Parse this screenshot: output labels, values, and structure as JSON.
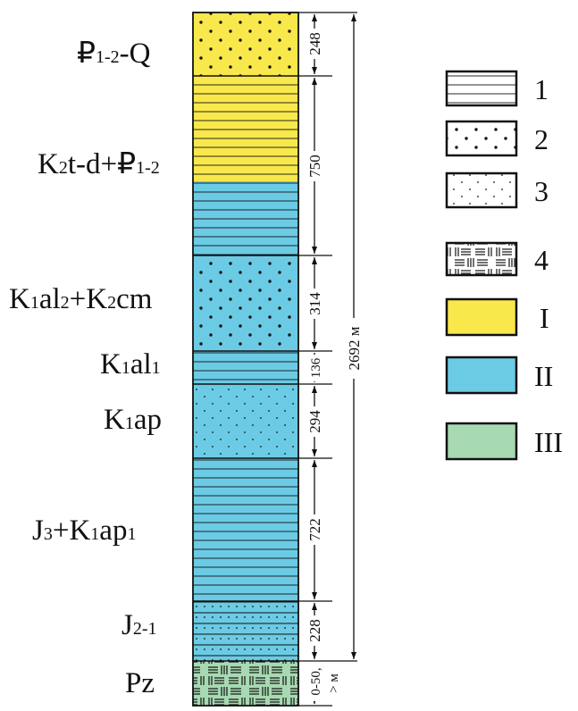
{
  "colors": {
    "zone_I": "#f8e84b",
    "zone_II": "#6ccbe4",
    "zone_III": "#a7d9b2",
    "stroke": "#111111"
  },
  "units": [
    {
      "age": [
        [
          "₽",
          ""
        ],
        [
          "1-2",
          "sub"
        ],
        [
          "-Q",
          ""
        ]
      ],
      "thickness": "248",
      "zone": "I",
      "pattern": "coarse-dots"
    },
    {
      "age": [
        [
          "K",
          ""
        ],
        [
          "2",
          "sub"
        ],
        [
          "t-d+₽",
          ""
        ],
        [
          "1-2",
          "sub"
        ]
      ],
      "thickness": "750",
      "zone": "I/II",
      "pattern": "lines"
    },
    {
      "age": [
        [
          "K",
          ""
        ],
        [
          "1",
          "sub"
        ],
        [
          "al",
          ""
        ],
        [
          "2",
          "sub"
        ],
        [
          "+K",
          ""
        ],
        [
          "2",
          "sub"
        ],
        [
          "cm",
          ""
        ]
      ],
      "thickness": "314",
      "zone": "II",
      "pattern": "coarse-dots"
    },
    {
      "age": [
        [
          "K",
          ""
        ],
        [
          "1",
          "sub"
        ],
        [
          "al",
          ""
        ],
        [
          "1",
          "sub"
        ]
      ],
      "thickness": "136",
      "zone": "II",
      "pattern": "lines"
    },
    {
      "age": [
        [
          "K",
          ""
        ],
        [
          "1",
          "sub"
        ],
        [
          "ap",
          ""
        ]
      ],
      "thickness": "294",
      "zone": "II",
      "pattern": "fine-dots"
    },
    {
      "age": [
        [
          "J",
          ""
        ],
        [
          "3",
          "sub"
        ],
        [
          "+K",
          ""
        ],
        [
          "1",
          "sub"
        ],
        [
          "ap",
          ""
        ],
        [
          "1",
          "sub"
        ]
      ],
      "thickness": "722",
      "zone": "II",
      "pattern": "lines"
    },
    {
      "age": [
        [
          "J",
          ""
        ],
        [
          "2-1",
          "sub"
        ]
      ],
      "thickness": "228",
      "zone": "II",
      "pattern": "lines+fine-dots"
    },
    {
      "age": [
        [
          "Pz",
          ""
        ]
      ],
      "thickness": "0-50,",
      "thickness_unit": "> м",
      "zone": "III",
      "pattern": "crystalline"
    }
  ],
  "total_thickness": "2692 м",
  "legend": [
    {
      "label": "1",
      "pattern": "lines"
    },
    {
      "label": "2",
      "pattern": "coarse-dots"
    },
    {
      "label": "3",
      "pattern": "fine-dots"
    },
    {
      "label": "4",
      "pattern": "crystalline"
    },
    {
      "label": "I",
      "color": "#f8e84b"
    },
    {
      "label": "II",
      "color": "#6ccbe4"
    },
    {
      "label": "III",
      "color": "#a7d9b2"
    }
  ]
}
